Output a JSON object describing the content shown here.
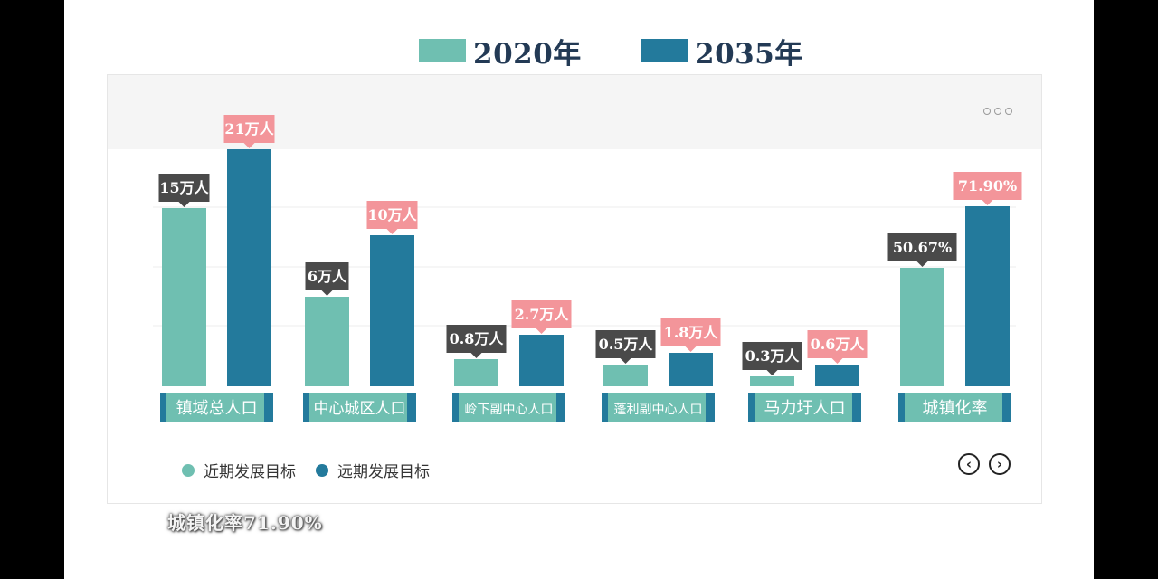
{
  "top_legend": [
    {
      "label": "2020年",
      "color": "#6fbfb1"
    },
    {
      "label": "2035年",
      "color": "#237a9c"
    }
  ],
  "bottom_legend": [
    {
      "label": "近期发展目标",
      "color": "#6fbfb1"
    },
    {
      "label": "远期发展目标",
      "color": "#237a9c"
    }
  ],
  "menu_icon": "more-dots-icon",
  "nav": {
    "prev_icon": "chevron-left-icon",
    "next_icon": "chevron-right-icon",
    "prev_glyph": "‹",
    "next_glyph": "›"
  },
  "caption": "城镇化率71.90%",
  "colors": {
    "near": "#6fbfb1",
    "far": "#237a9c",
    "near_label_bg": "#4a4a4a",
    "far_label_bg": "#f3959a",
    "category_bg": "#6fbfb1",
    "category_edge": "#237a9c"
  },
  "chart_data": {
    "type": "bar",
    "categories": [
      "镇域总人口",
      "中心城区人口",
      "岭下副中心人口",
      "蓬利副中心人口",
      "马力圩人口",
      "城镇化率"
    ],
    "series": [
      {
        "name": "近期发展目标",
        "values": [
          15,
          6,
          0.8,
          0.5,
          0.3,
          50.67
        ],
        "labels": [
          "15万人",
          "6万人",
          "0.8万人",
          "0.5万人",
          "0.3万人",
          "50.67%"
        ]
      },
      {
        "name": "远期发展目标",
        "values": [
          21,
          10,
          2.7,
          1.8,
          0.6,
          71.9
        ],
        "labels": [
          "21万人",
          "10万人",
          "2.7万人",
          "1.8万人",
          "0.6万人",
          "71.90%"
        ]
      }
    ],
    "grid": true,
    "legend_position": "top and bottom-left"
  }
}
